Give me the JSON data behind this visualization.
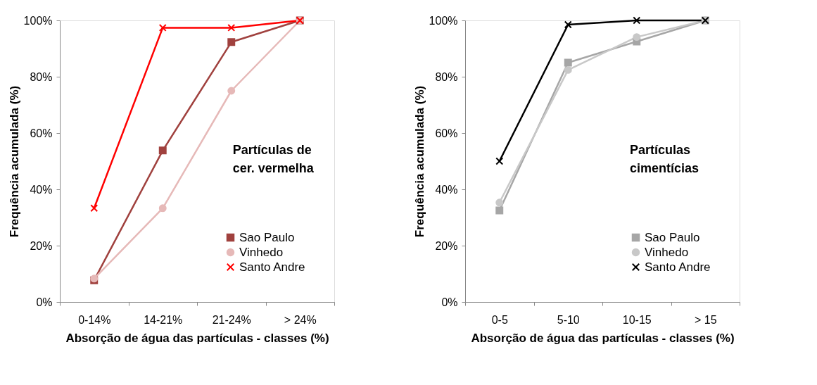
{
  "chart_data": [
    {
      "type": "line",
      "xlabel": "Absorção de água das partículas - classes (%)",
      "ylabel": "Frequência acumulada (%)",
      "categories": [
        "0-14%",
        "14-21%",
        "21-24%",
        "> 24%"
      ],
      "ylim": [
        0,
        100
      ],
      "yticks": [
        {
          "value": 0,
          "label": "0%"
        },
        {
          "value": 20,
          "label": "20%"
        },
        {
          "value": 40,
          "label": "40%"
        },
        {
          "value": 60,
          "label": "60%"
        },
        {
          "value": 80,
          "label": "80%"
        },
        {
          "value": 100,
          "label": "100%"
        }
      ],
      "legend": "bottom right",
      "annotations": [
        "Partículas de\ncer. vermelha"
      ],
      "series": [
        {
          "name": "Sao Paulo",
          "color": "#a0413e",
          "marker": "square",
          "values": [
            7.7,
            53.8,
            92.3,
            100
          ]
        },
        {
          "name": "Vinhedo",
          "color": "#e6b9b8",
          "marker": "circle",
          "values": [
            8.3,
            33.3,
            75,
            100
          ]
        },
        {
          "name": "Santo Andre",
          "color": "#ff0000",
          "marker": "cross",
          "values": [
            33.3,
            97.4,
            97.4,
            100
          ]
        }
      ]
    },
    {
      "type": "line",
      "xlabel": "Absorção de água das partículas - classes (%)",
      "ylabel": "Frequência acumulada (%)",
      "categories": [
        "0-5",
        "5-10",
        "10-15",
        "> 15"
      ],
      "ylim": [
        0,
        100
      ],
      "yticks": [
        {
          "value": 0,
          "label": "0%"
        },
        {
          "value": 20,
          "label": "20%"
        },
        {
          "value": 40,
          "label": "40%"
        },
        {
          "value": 60,
          "label": "60%"
        },
        {
          "value": 80,
          "label": "80%"
        },
        {
          "value": 100,
          "label": "100%"
        }
      ],
      "legend": "bottom right",
      "annotations": [
        "Partículas\ncimentícias"
      ],
      "series": [
        {
          "name": "Sao Paulo",
          "color": "#a6a6a6",
          "marker": "square",
          "values": [
            32.5,
            85,
            92.5,
            100
          ]
        },
        {
          "name": "Vinhedo",
          "color": "#c8c8c8",
          "marker": "circle",
          "values": [
            35.3,
            82.4,
            94.1,
            100
          ]
        },
        {
          "name": "Santo Andre",
          "color": "#000000",
          "marker": "cross",
          "values": [
            50,
            98.5,
            100,
            100
          ]
        }
      ]
    }
  ]
}
